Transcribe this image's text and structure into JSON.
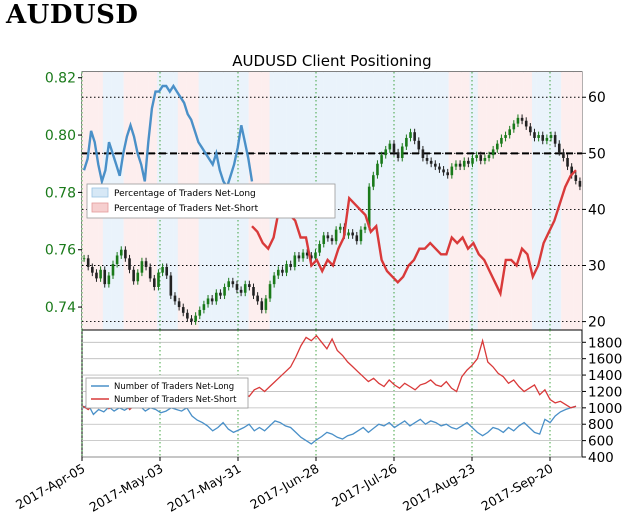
{
  "heading": "AUDUSD",
  "chart_data": [
    {
      "type": "line",
      "title": "AUDUSD Client Positioning",
      "x_labels": [
        "2017-Apr-05",
        "2017-May-03",
        "2017-May-31",
        "2017-Jun-28",
        "2017-Jul-26",
        "2017-Aug-23",
        "2017-Sep-20"
      ],
      "price_axis": {
        "side": "left",
        "ticks": [
          "0.74",
          "0.76",
          "0.78",
          "0.80",
          "0.82"
        ],
        "ylim": [
          0.732,
          0.822
        ],
        "color": "#1a7a1a"
      },
      "percent_axis": {
        "side": "right",
        "ticks": [
          "20",
          "30",
          "40",
          "50",
          "60"
        ],
        "ylim": [
          18.5,
          64.5
        ]
      },
      "reference_line": {
        "value": 50,
        "style": "dashed",
        "color": "#000000"
      },
      "legend": {
        "placement": "left",
        "entries": [
          "Percentage of Traders Net-Long",
          "Percentage of Traders Net-Short"
        ]
      },
      "price_series": {
        "name": "AUDUSD",
        "color": "#1a7a1a",
        "values": [
          0.757,
          0.754,
          0.752,
          0.75,
          0.753,
          0.748,
          0.751,
          0.755,
          0.758,
          0.76,
          0.757,
          0.753,
          0.749,
          0.752,
          0.756,
          0.754,
          0.75,
          0.747,
          0.752,
          0.754,
          0.751,
          0.744,
          0.742,
          0.74,
          0.738,
          0.736,
          0.735,
          0.737,
          0.739,
          0.741,
          0.743,
          0.742,
          0.745,
          0.744,
          0.747,
          0.749,
          0.748,
          0.746,
          0.745,
          0.748,
          0.747,
          0.744,
          0.742,
          0.739,
          0.743,
          0.748,
          0.751,
          0.753,
          0.752,
          0.755,
          0.754,
          0.758,
          0.757,
          0.759,
          0.758,
          0.757,
          0.759,
          0.762,
          0.765,
          0.764,
          0.763,
          0.767,
          0.768,
          0.765,
          0.766,
          0.765,
          0.763,
          0.767,
          0.768,
          0.782,
          0.786,
          0.79,
          0.793,
          0.795,
          0.797,
          0.794,
          0.792,
          0.796,
          0.799,
          0.801,
          0.798,
          0.795,
          0.792,
          0.791,
          0.79,
          0.789,
          0.788,
          0.787,
          0.786,
          0.789,
          0.79,
          0.789,
          0.791,
          0.79,
          0.792,
          0.793,
          0.791,
          0.792,
          0.793,
          0.795,
          0.797,
          0.799,
          0.8,
          0.802,
          0.804,
          0.806,
          0.805,
          0.803,
          0.801,
          0.799,
          0.8,
          0.798,
          0.799,
          0.8,
          0.797,
          0.794,
          0.792,
          0.789,
          0.786,
          0.784,
          0.782
        ]
      },
      "net_long_pct": {
        "name": "Percentage of Traders Net-Long",
        "color": "#4a90c8",
        "values": [
          47,
          49,
          54,
          52,
          48,
          45,
          47,
          52,
          50,
          48,
          46,
          50,
          53,
          55,
          53,
          50,
          48,
          45,
          52,
          58,
          61,
          61,
          62,
          62,
          61,
          62,
          61,
          60,
          59,
          57,
          56,
          54,
          52,
          51,
          50,
          49,
          48,
          50,
          47,
          45,
          44,
          46,
          48,
          51,
          55,
          52,
          49,
          45
        ]
      },
      "net_short_pct": {
        "name": "Percentage of Traders Net-Short",
        "color": "#d93a3a",
        "values": [
          37,
          36,
          34,
          33,
          35,
          40,
          42,
          39,
          38,
          35,
          35,
          30,
          31,
          29,
          31,
          30,
          33,
          35,
          42,
          41,
          40,
          39,
          36,
          37,
          31,
          29,
          28,
          27,
          28,
          30,
          31,
          33,
          33,
          34,
          33,
          32,
          32,
          35,
          34,
          35,
          33,
          34,
          32,
          31,
          29,
          27,
          25,
          31,
          31,
          30,
          33,
          32,
          28,
          30,
          34,
          36,
          38,
          41,
          44,
          46,
          47
        ]
      }
    },
    {
      "type": "line",
      "right_axis": {
        "ticks": [
          "400",
          "600",
          "800",
          "1000",
          "1200",
          "1400",
          "1600",
          "1800"
        ],
        "ylim": [
          400,
          1950
        ]
      },
      "legend": {
        "placement": "left",
        "entries": [
          "Number of Traders Net-Long",
          "Number of Traders Net-Short"
        ]
      },
      "series": [
        {
          "name": "Number of Traders Net-Long",
          "color": "#4a90c8",
          "values": [
            1000,
            1040,
            920,
            980,
            950,
            1010,
            960,
            1000,
            970,
            1010,
            1060,
            1020,
            960,
            1000,
            980,
            940,
            960,
            1000,
            980,
            960,
            1000,
            900,
            850,
            820,
            780,
            720,
            760,
            820,
            740,
            700,
            730,
            760,
            800,
            720,
            760,
            720,
            780,
            840,
            820,
            780,
            760,
            700,
            640,
            600,
            560,
            610,
            650,
            700,
            680,
            640,
            620,
            660,
            680,
            720,
            760,
            700,
            750,
            800,
            780,
            820,
            760,
            800,
            840,
            780,
            820,
            860,
            800,
            840,
            820,
            780,
            800,
            760,
            740,
            780,
            820,
            760,
            700,
            660,
            700,
            760,
            740,
            700,
            760,
            720,
            780,
            820,
            760,
            700,
            680,
            860,
            820,
            900,
            950,
            980,
            1000,
            1020
          ]
        },
        {
          "name": "Number of Traders Net-Short",
          "color": "#d93a3a",
          "values": [
            1020,
            980,
            1040,
            1000,
            1050,
            990,
            1030,
            1010,
            1060,
            980,
            1040,
            1000,
            1020,
            1060,
            1100,
            1050,
            1080,
            1020,
            1060,
            1040,
            1080,
            1120,
            1160,
            1180,
            1200,
            1240,
            1300,
            1260,
            1220,
            1200,
            1160,
            1180,
            1140,
            1220,
            1250,
            1200,
            1260,
            1320,
            1380,
            1440,
            1500,
            1620,
            1760,
            1860,
            1820,
            1880,
            1800,
            1720,
            1840,
            1700,
            1640,
            1560,
            1500,
            1440,
            1380,
            1320,
            1360,
            1300,
            1260,
            1340,
            1280,
            1240,
            1300,
            1260,
            1220,
            1280,
            1300,
            1340,
            1280,
            1260,
            1320,
            1240,
            1200,
            1380,
            1460,
            1520,
            1600,
            1820,
            1560,
            1500,
            1420,
            1380,
            1300,
            1340,
            1260,
            1200,
            1240,
            1280,
            1160,
            1220,
            1100,
            1060,
            1080,
            1040,
            1000,
            1020
          ]
        }
      ]
    }
  ]
}
